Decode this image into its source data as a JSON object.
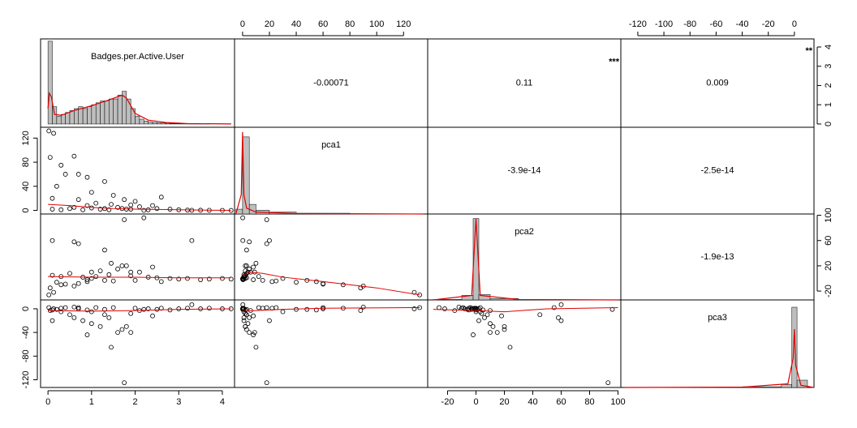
{
  "chart_data": {
    "type": "correlation-matrix",
    "star_color": "#df536b",
    "line_color": "#df0000",
    "variables": [
      {
        "name": "Badges.per.Active.User",
        "lim": [
          -0.17,
          4.28
        ],
        "xticks": [
          0,
          1,
          2,
          3,
          4
        ],
        "yticks": [
          0,
          1,
          2,
          3,
          4
        ],
        "hist": {
          "bins": [
            0,
            0.1,
            0.2,
            0.3,
            0.4,
            0.5,
            0.6,
            0.7,
            0.8,
            0.9,
            1,
            1.1,
            1.2,
            1.3,
            1.4,
            1.5,
            1.6,
            1.7,
            1.8,
            1.9,
            2,
            2.1,
            2.2,
            2.3,
            2.4,
            2.5,
            2.6,
            2.7,
            2.8,
            2.9,
            3,
            3.1,
            3.2,
            3.3,
            3.4,
            3.5,
            3.6,
            3.7,
            3.8,
            3.9,
            4,
            4.1,
            4.2
          ],
          "counts": [
            4.3,
            0.9,
            0.4,
            0.5,
            0.6,
            0.7,
            0.8,
            0.9,
            0.8,
            0.9,
            1.0,
            1.1,
            1.2,
            1.2,
            1.3,
            1.3,
            1.5,
            1.7,
            1.3,
            0.8,
            0.4,
            0.25,
            0.15,
            0.1,
            0.08,
            0.06,
            0.05,
            0.04,
            0.03,
            0.02,
            0.02,
            0.01,
            0.01,
            0.01,
            0.01,
            0.005,
            0.005,
            0,
            0,
            0,
            0,
            0.005
          ],
          "ylim": [
            -0.17,
            4.42
          ],
          "yticks": [
            0,
            1,
            2,
            3,
            4
          ],
          "density_x": [
            0,
            0.03,
            0.08,
            0.15,
            0.3,
            0.6,
            1,
            1.4,
            1.7,
            1.8,
            2,
            2.3,
            2.7,
            3.2,
            4.2
          ],
          "density_y": [
            0.8,
            1.6,
            1.4,
            0.5,
            0.45,
            0.7,
            0.95,
            1.25,
            1.5,
            1.35,
            0.55,
            0.2,
            0.08,
            0.02,
            0.003
          ]
        }
      },
      {
        "name": "pca1",
        "lim": [
          -6,
          138
        ],
        "xticks": [
          0,
          20,
          40,
          60,
          80,
          100,
          120
        ],
        "yticks": [
          0,
          40,
          80,
          120
        ],
        "hist": {
          "bins": [
            -5,
            0,
            5,
            10,
            20,
            40,
            80,
            135
          ],
          "counts": [
            0.005,
            0.08,
            0.01,
            0.004,
            0.002,
            0.0008,
            0.0002
          ],
          "ylim": [
            0,
            0.09
          ],
          "density_x": [
            -5,
            -1,
            0,
            1,
            3,
            10,
            40,
            135
          ],
          "density_y": [
            0,
            0.02,
            0.085,
            0.02,
            0.006,
            0.002,
            0.0005,
            0
          ]
        }
      },
      {
        "name": "pca2",
        "lim": [
          -34,
          102
        ],
        "xticks": [
          -20,
          0,
          20,
          40,
          60,
          80,
          100
        ],
        "yticks": [
          -20,
          20,
          60,
          100
        ],
        "hist": {
          "bins": [
            -30,
            -10,
            -2,
            2,
            10,
            30,
            60,
            100
          ],
          "counts": [
            0.0005,
            0.005,
            0.09,
            0.006,
            0.0015,
            0.0004,
            0.0001
          ],
          "ylim": [
            0,
            0.095
          ],
          "density_x": [
            -30,
            -3,
            0,
            3,
            30,
            100
          ],
          "density_y": [
            0,
            0.005,
            0.09,
            0.005,
            0.0005,
            0
          ]
        }
      },
      {
        "name": "pca3",
        "lim": [
          -133,
          15
        ],
        "xticks": [
          -120,
          -100,
          -80,
          -60,
          -40,
          -20,
          0
        ],
        "yticks": [
          -120,
          -80,
          -40,
          0
        ],
        "hist": {
          "bins": [
            -130,
            -80,
            -40,
            -10,
            -2,
            2,
            10
          ],
          "counts": [
            0.0001,
            0.0003,
            0.001,
            0.004,
            0.11,
            0.01
          ],
          "ylim": [
            0,
            0.12
          ],
          "density_x": [
            -130,
            -40,
            -5,
            -1,
            0,
            1,
            5,
            15
          ],
          "density_y": [
            0,
            0.0005,
            0.005,
            0.04,
            0.08,
            0.03,
            0.003,
            0
          ]
        }
      }
    ],
    "correlations": [
      {
        "value": -0.00071
      },
      {
        "value": 0.11,
        "stars": "***"
      },
      {
        "value": 0.009,
        "stars": "**"
      },
      {
        "value": -3.9e-14
      },
      {
        "value": -2.5e-14
      },
      {
        "value": -1.9e-13
      }
    ],
    "observations": [
      [
        0.02,
        132,
        -26,
        2
      ],
      [
        0.13,
        128,
        -22,
        0
      ],
      [
        0.05,
        88,
        -15,
        -3
      ],
      [
        0.3,
        75,
        -10,
        1
      ],
      [
        0.6,
        90,
        -12,
        3
      ],
      [
        0.7,
        60,
        -8,
        0
      ],
      [
        0.9,
        55,
        -5,
        -2
      ],
      [
        1.3,
        48,
        -3,
        -1
      ],
      [
        0.4,
        60,
        -9,
        2
      ],
      [
        0.1,
        20,
        60,
        -20
      ],
      [
        0.6,
        5,
        58,
        -15
      ],
      [
        1.3,
        3,
        45,
        -10
      ],
      [
        1.8,
        2,
        20,
        -30
      ],
      [
        1.75,
        18,
        93,
        -125
      ],
      [
        1.45,
        10,
        24,
        -65
      ],
      [
        0.1,
        2,
        5,
        -2
      ],
      [
        0.3,
        1,
        3,
        -5
      ],
      [
        0.5,
        3,
        8,
        -10
      ],
      [
        0.8,
        1,
        2,
        -20
      ],
      [
        1.0,
        4,
        10,
        -25
      ],
      [
        1.2,
        2,
        12,
        -30
      ],
      [
        1.4,
        1,
        6,
        -15
      ],
      [
        1.6,
        5,
        15,
        -40
      ],
      [
        1.7,
        3,
        20,
        -35
      ],
      [
        1.9,
        2,
        4,
        -8
      ],
      [
        2.1,
        6,
        10,
        -3
      ],
      [
        2.3,
        1,
        2,
        0
      ],
      [
        2.5,
        3,
        1,
        -1
      ],
      [
        2.8,
        2,
        0,
        -2
      ],
      [
        3.0,
        1,
        -1,
        0
      ],
      [
        3.2,
        0.5,
        0,
        1
      ],
      [
        3.5,
        0.3,
        -2,
        0
      ],
      [
        3.7,
        0.2,
        -1,
        1
      ],
      [
        4.0,
        0.1,
        0,
        0
      ],
      [
        4.2,
        0,
        -1,
        0
      ],
      [
        0.9,
        8,
        -2,
        -44
      ],
      [
        1.1,
        12,
        3,
        2
      ],
      [
        2.0,
        15,
        -3,
        1
      ],
      [
        2.4,
        8,
        18,
        -12
      ],
      [
        1.5,
        25,
        -4,
        2
      ],
      [
        0.2,
        40,
        -6,
        -1
      ],
      [
        2.6,
        22,
        -5,
        1
      ],
      [
        1.0,
        30,
        0,
        -5
      ],
      [
        0.7,
        18,
        55,
        2
      ],
      [
        1.9,
        9,
        10,
        -40
      ],
      [
        3.3,
        0.2,
        60,
        7
      ],
      [
        2.2,
        0.1,
        96,
        -1
      ]
    ],
    "fits": [
      {
        "x": [
          0,
          0.5,
          1,
          1.5,
          2,
          3,
          4.2
        ],
        "y": [
          10,
          8,
          5,
          3,
          2,
          1,
          0
        ]
      },
      {
        "x": [
          0,
          1,
          2,
          3,
          4.2
        ],
        "y": [
          3,
          2,
          2,
          1,
          1
        ]
      },
      {
        "x": [
          0,
          1,
          2,
          3,
          4.2
        ],
        "y": [
          -3,
          -4,
          -3,
          -1,
          0
        ]
      },
      {
        "x": [
          0,
          5,
          15,
          30,
          60,
          100,
          132
        ],
        "y": [
          5,
          10,
          8,
          2,
          -5,
          -15,
          -26
        ]
      },
      {
        "x": [
          0,
          10,
          30,
          60,
          132
        ],
        "y": [
          -4,
          -3,
          -1,
          1,
          2
        ]
      },
      {
        "x": [
          -30,
          0,
          20,
          50,
          100
        ],
        "y": [
          -1,
          -3,
          -5,
          0,
          2
        ]
      }
    ]
  }
}
